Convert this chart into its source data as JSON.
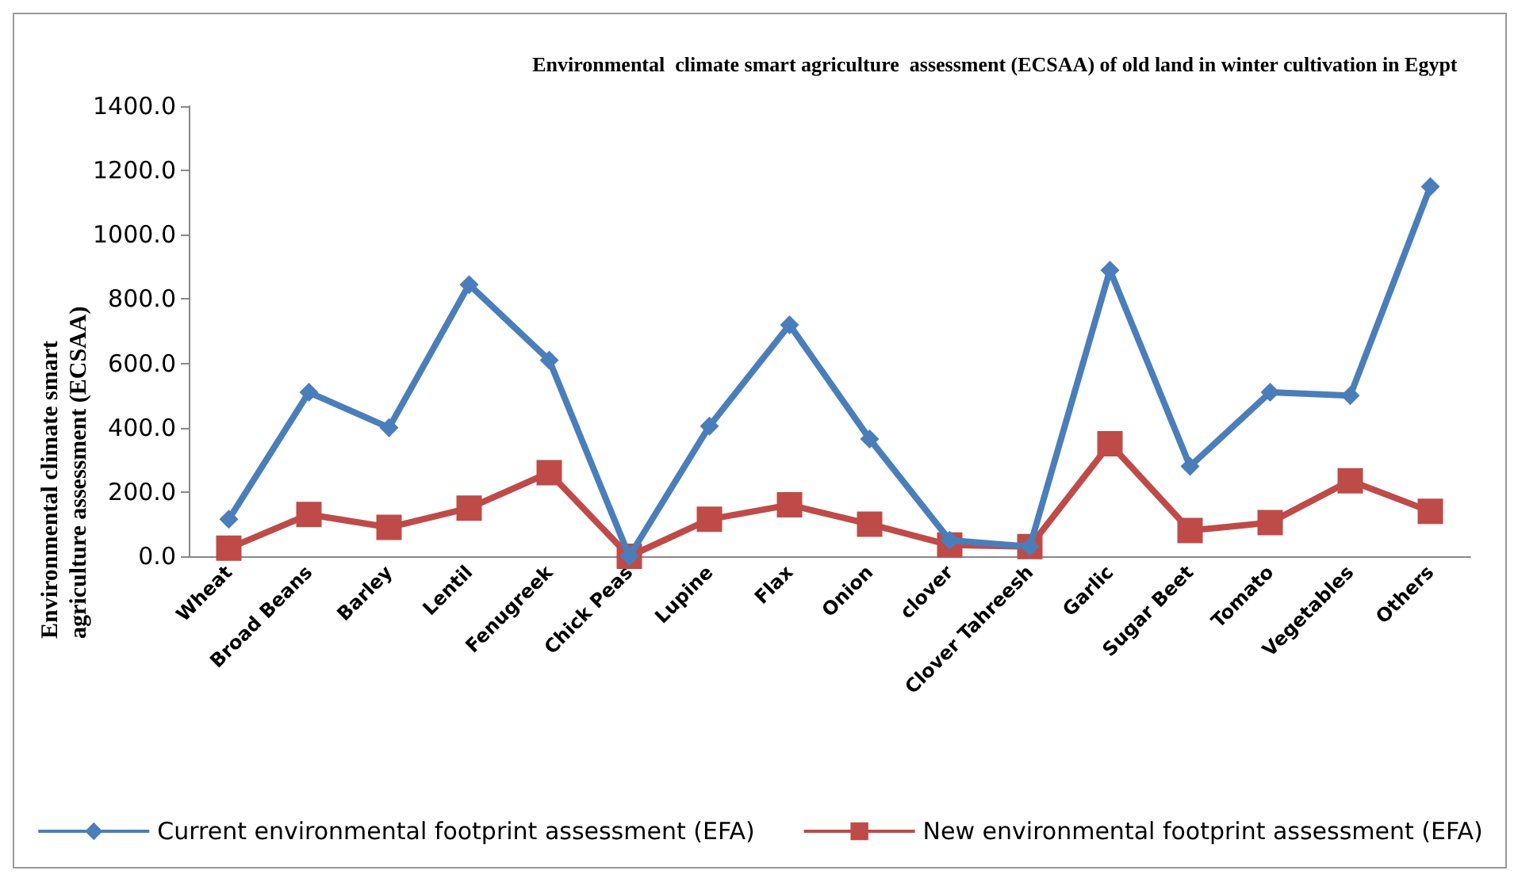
{
  "chart_data": {
    "type": "line",
    "title": "Environmental  climate smart agriculture  assessment (ECSAA) of old land in winter cultivation in Egypt",
    "ylabel": "Environmental climate smart agriculture assessment (ECSAA)",
    "categories": [
      "Wheat",
      "Broad Beans",
      "Barley",
      "Lentil",
      "Fenugreek",
      "Chick Peas",
      "Lupine",
      "Flax",
      "Onion",
      "clover",
      "Clover Tahreesh",
      "Garlic",
      "Sugar Beet",
      "Tomato",
      "Vegetables",
      "Others"
    ],
    "series": [
      {
        "name": "Current environmental footprint assessment (EFA)",
        "color": "#4a7ebb",
        "marker": "diamond",
        "values": [
          115,
          510,
          400,
          845,
          610,
          0,
          405,
          720,
          365,
          50,
          30,
          890,
          280,
          510,
          500,
          1150
        ]
      },
      {
        "name": "New environmental footprint assessment (EFA)",
        "color": "#be4b48",
        "marker": "square",
        "values": [
          25,
          130,
          90,
          150,
          260,
          0,
          115,
          160,
          100,
          35,
          30,
          350,
          80,
          105,
          235,
          140
        ]
      }
    ],
    "ylim": [
      0,
      1400
    ],
    "yticks": [
      {
        "value": 0,
        "label": "0.0"
      },
      {
        "value": 200,
        "label": "200.0"
      },
      {
        "value": 400,
        "label": "400.0"
      },
      {
        "value": 600,
        "label": "600.0"
      },
      {
        "value": 800,
        "label": "800.0"
      },
      {
        "value": 1000,
        "label": "1000.0"
      },
      {
        "value": 1200,
        "label": "1200.0"
      },
      {
        "value": 1400,
        "label": "1400.0"
      }
    ],
    "grid": false,
    "legend": "bottom",
    "line_style": "solid"
  }
}
